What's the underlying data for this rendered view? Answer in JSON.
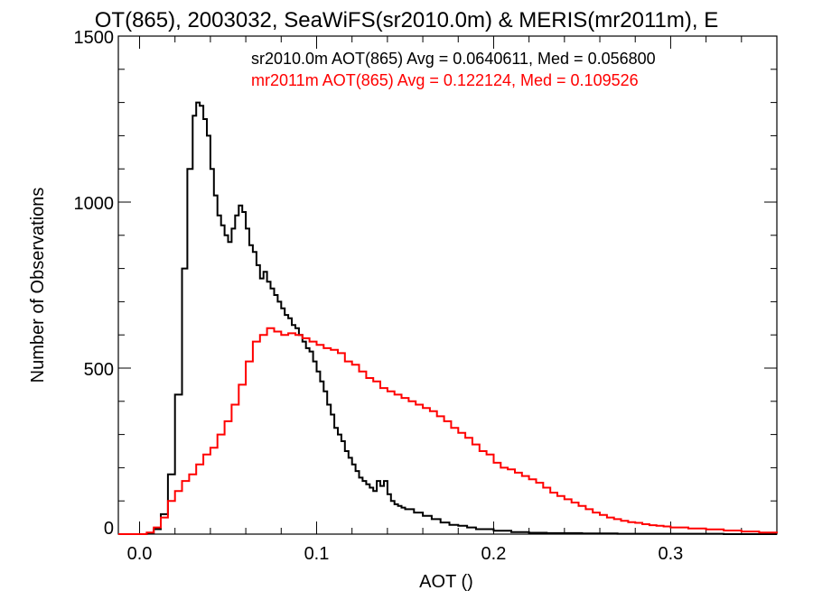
{
  "chart_data": {
    "type": "line",
    "title": "OT(865), 2003032, SeaWiFS(sr2010.0m) & MERIS(mr2011m), E",
    "xlabel": "AOT ()",
    "ylabel": "Number of Observations",
    "xlim": [
      -0.012,
      0.36
    ],
    "ylim": [
      0,
      1500
    ],
    "xticks": [
      0.0,
      0.1,
      0.2,
      0.3
    ],
    "xtick_labels": [
      "0.0",
      "0.1",
      "0.2",
      "0.3"
    ],
    "yticks": [
      0,
      500,
      1000,
      1500
    ],
    "ytick_labels": [
      "0",
      "500",
      "1000",
      "1500"
    ],
    "step_style": "histogram",
    "annotations": [
      {
        "text": "sr2010.0m AOT(865) Avg = 0.0640611, Med = 0.056800",
        "color": "#000000"
      },
      {
        "text": "mr2011m AOT(865) Avg = 0.122124, Med = 0.109526",
        "color": "#ff0000"
      }
    ],
    "series": [
      {
        "color": "#000000",
        "points": [
          [
            -0.012,
            0
          ],
          [
            0.0,
            0
          ],
          [
            0.004,
            2
          ],
          [
            0.008,
            15
          ],
          [
            0.012,
            60
          ],
          [
            0.016,
            180
          ],
          [
            0.02,
            420
          ],
          [
            0.024,
            800
          ],
          [
            0.027,
            1100
          ],
          [
            0.03,
            1260
          ],
          [
            0.032,
            1300
          ],
          [
            0.034,
            1290
          ],
          [
            0.036,
            1250
          ],
          [
            0.038,
            1200
          ],
          [
            0.04,
            1100
          ],
          [
            0.042,
            1020
          ],
          [
            0.044,
            960
          ],
          [
            0.046,
            930
          ],
          [
            0.048,
            900
          ],
          [
            0.05,
            880
          ],
          [
            0.052,
            920
          ],
          [
            0.054,
            960
          ],
          [
            0.056,
            990
          ],
          [
            0.058,
            970
          ],
          [
            0.06,
            920
          ],
          [
            0.062,
            870
          ],
          [
            0.064,
            850
          ],
          [
            0.066,
            810
          ],
          [
            0.068,
            770
          ],
          [
            0.07,
            790
          ],
          [
            0.072,
            760
          ],
          [
            0.074,
            740
          ],
          [
            0.076,
            720
          ],
          [
            0.078,
            700
          ],
          [
            0.08,
            680
          ],
          [
            0.082,
            660
          ],
          [
            0.084,
            650
          ],
          [
            0.086,
            630
          ],
          [
            0.088,
            620
          ],
          [
            0.09,
            600
          ],
          [
            0.092,
            580
          ],
          [
            0.094,
            560
          ],
          [
            0.096,
            550
          ],
          [
            0.098,
            520
          ],
          [
            0.1,
            490
          ],
          [
            0.102,
            460
          ],
          [
            0.104,
            430
          ],
          [
            0.106,
            390
          ],
          [
            0.108,
            360
          ],
          [
            0.11,
            320
          ],
          [
            0.112,
            300
          ],
          [
            0.114,
            280
          ],
          [
            0.116,
            250
          ],
          [
            0.118,
            230
          ],
          [
            0.12,
            210
          ],
          [
            0.122,
            190
          ],
          [
            0.124,
            170
          ],
          [
            0.126,
            160
          ],
          [
            0.128,
            150
          ],
          [
            0.13,
            140
          ],
          [
            0.132,
            130
          ],
          [
            0.134,
            160
          ],
          [
            0.136,
            145
          ],
          [
            0.138,
            160
          ],
          [
            0.14,
            120
          ],
          [
            0.142,
            100
          ],
          [
            0.144,
            90
          ],
          [
            0.146,
            85
          ],
          [
            0.148,
            80
          ],
          [
            0.15,
            75
          ],
          [
            0.155,
            65
          ],
          [
            0.16,
            55
          ],
          [
            0.165,
            45
          ],
          [
            0.17,
            35
          ],
          [
            0.175,
            28
          ],
          [
            0.18,
            25
          ],
          [
            0.185,
            20
          ],
          [
            0.19,
            15
          ],
          [
            0.2,
            10
          ],
          [
            0.21,
            6
          ],
          [
            0.22,
            4
          ],
          [
            0.23,
            3
          ],
          [
            0.25,
            2
          ],
          [
            0.27,
            1
          ],
          [
            0.3,
            1
          ],
          [
            0.33,
            0
          ],
          [
            0.36,
            0
          ]
        ]
      },
      {
        "color": "#ff0000",
        "points": [
          [
            -0.012,
            0
          ],
          [
            0.0,
            0
          ],
          [
            0.004,
            5
          ],
          [
            0.008,
            20
          ],
          [
            0.012,
            50
          ],
          [
            0.016,
            100
          ],
          [
            0.02,
            130
          ],
          [
            0.024,
            160
          ],
          [
            0.028,
            180
          ],
          [
            0.032,
            210
          ],
          [
            0.036,
            240
          ],
          [
            0.04,
            260
          ],
          [
            0.044,
            300
          ],
          [
            0.048,
            340
          ],
          [
            0.052,
            390
          ],
          [
            0.056,
            450
          ],
          [
            0.06,
            520
          ],
          [
            0.064,
            580
          ],
          [
            0.068,
            600
          ],
          [
            0.072,
            620
          ],
          [
            0.076,
            610
          ],
          [
            0.08,
            600
          ],
          [
            0.084,
            605
          ],
          [
            0.088,
            600
          ],
          [
            0.092,
            590
          ],
          [
            0.096,
            580
          ],
          [
            0.1,
            570
          ],
          [
            0.104,
            560
          ],
          [
            0.108,
            555
          ],
          [
            0.112,
            545
          ],
          [
            0.116,
            520
          ],
          [
            0.12,
            510
          ],
          [
            0.124,
            490
          ],
          [
            0.128,
            470
          ],
          [
            0.132,
            460
          ],
          [
            0.136,
            440
          ],
          [
            0.14,
            430
          ],
          [
            0.144,
            420
          ],
          [
            0.148,
            410
          ],
          [
            0.152,
            400
          ],
          [
            0.156,
            390
          ],
          [
            0.16,
            380
          ],
          [
            0.164,
            370
          ],
          [
            0.168,
            355
          ],
          [
            0.172,
            340
          ],
          [
            0.176,
            320
          ],
          [
            0.18,
            305
          ],
          [
            0.184,
            290
          ],
          [
            0.188,
            270
          ],
          [
            0.192,
            250
          ],
          [
            0.196,
            240
          ],
          [
            0.2,
            215
          ],
          [
            0.204,
            200
          ],
          [
            0.208,
            195
          ],
          [
            0.212,
            185
          ],
          [
            0.216,
            175
          ],
          [
            0.22,
            165
          ],
          [
            0.224,
            155
          ],
          [
            0.228,
            140
          ],
          [
            0.232,
            125
          ],
          [
            0.236,
            115
          ],
          [
            0.24,
            105
          ],
          [
            0.244,
            95
          ],
          [
            0.248,
            85
          ],
          [
            0.252,
            75
          ],
          [
            0.256,
            65
          ],
          [
            0.26,
            58
          ],
          [
            0.264,
            50
          ],
          [
            0.268,
            45
          ],
          [
            0.272,
            40
          ],
          [
            0.276,
            36
          ],
          [
            0.28,
            34
          ],
          [
            0.284,
            30
          ],
          [
            0.288,
            27
          ],
          [
            0.292,
            25
          ],
          [
            0.296,
            23
          ],
          [
            0.3,
            20
          ],
          [
            0.31,
            17
          ],
          [
            0.32,
            14
          ],
          [
            0.33,
            11
          ],
          [
            0.34,
            8
          ],
          [
            0.35,
            5
          ],
          [
            0.36,
            3
          ]
        ]
      }
    ]
  }
}
